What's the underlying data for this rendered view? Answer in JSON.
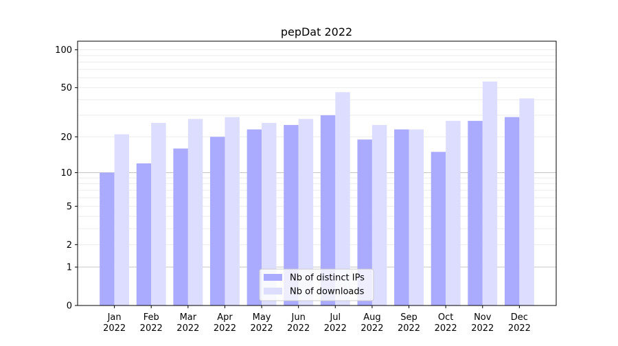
{
  "chart_data": {
    "type": "bar",
    "title": "pepDat 2022",
    "xlabel": "",
    "ylabel": "",
    "y_scale": "log(1+y)",
    "ylim": [
      0,
      117
    ],
    "y_ticks": [
      0,
      1,
      2,
      5,
      10,
      20,
      50,
      100
    ],
    "grid": true,
    "legend_position": "bottom-center",
    "categories": [
      "Jan\n2022",
      "Feb\n2022",
      "Mar\n2022",
      "Apr\n2022",
      "May\n2022",
      "Jun\n2022",
      "Jul\n2022",
      "Aug\n2022",
      "Sep\n2022",
      "Oct\n2022",
      "Nov\n2022",
      "Dec\n2022"
    ],
    "series": [
      {
        "name": "Nb of distinct IPs",
        "color": "#aaaaff",
        "values": [
          10,
          12,
          16,
          20,
          23,
          25,
          30,
          19,
          23,
          15,
          27,
          29
        ]
      },
      {
        "name": "Nb of downloads",
        "color": "#ddddff",
        "values": [
          21,
          26,
          28,
          29,
          26,
          28,
          46,
          25,
          23,
          27,
          56,
          41
        ]
      }
    ]
  }
}
